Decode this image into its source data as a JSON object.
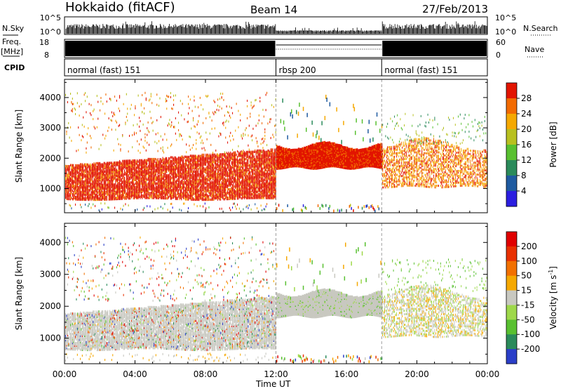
{
  "header": {
    "title": "Hokkaido (fitACF)",
    "beam": "Beam 14",
    "date": "27/Feb/2013"
  },
  "top_panels": {
    "nsky_label": "N.Sky",
    "nsky_ticks": [
      "10^5",
      "10^0"
    ],
    "nsearch_label": "N.Search",
    "freq_label": "Freq.",
    "freq_unit": "[MHz]",
    "freq_ticks": [
      "18",
      "8"
    ],
    "nave_ticks": [
      "60",
      "0"
    ],
    "nave_label": "Nave",
    "cpid_label": "CPID",
    "cpid_segments": [
      {
        "label": "normal (fast) 151",
        "start_hour": 0,
        "end_hour": 12
      },
      {
        "label": "rbsp 200",
        "start_hour": 12,
        "end_hour": 18
      },
      {
        "label": "normal (fast) 151",
        "start_hour": 18,
        "end_hour": 24
      }
    ]
  },
  "chart_data": [
    {
      "type": "heatmap",
      "name": "power",
      "ylabel": "Slant Range [km]",
      "ylim": [
        200,
        4600
      ],
      "yticks": [
        "1000",
        "2000",
        "3000",
        "4000"
      ],
      "colorbar_label": "Power [dB]",
      "colorbar_ticks": [
        "28",
        "24",
        "20",
        "16",
        "12",
        "8",
        "4"
      ],
      "colors": [
        "#2b1ee0",
        "#1e5aa0",
        "#2a8a5a",
        "#58c030",
        "#b8c020",
        "#f5a800",
        "#f26a00",
        "#e21400"
      ]
    },
    {
      "type": "heatmap",
      "name": "velocity",
      "ylabel": "Slant Range [km]",
      "ylim": [
        200,
        4600
      ],
      "yticks": [
        "1000",
        "2000",
        "3000",
        "4000"
      ],
      "colorbar_label": "Velocity [m s",
      "colorbar_exponent": "-1",
      "colorbar_close": "]",
      "colorbar_ticks": [
        "200",
        "100",
        "50",
        "15",
        "-15",
        "-50",
        "-100",
        "-200"
      ],
      "colors": [
        "#2a3ec8",
        "#2a8a5a",
        "#58c030",
        "#9ed84a",
        "#c8c8c0",
        "#f5a800",
        "#f27000",
        "#e83000",
        "#e00000"
      ]
    }
  ],
  "xaxis": {
    "label": "Time UT",
    "ticks": [
      "00:00",
      "04:00",
      "08:00",
      "12:00",
      "16:00",
      "20:00",
      "00:00"
    ]
  }
}
